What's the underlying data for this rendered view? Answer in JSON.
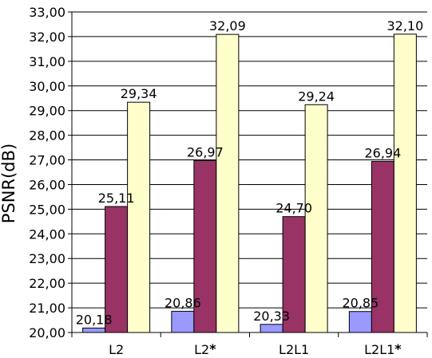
{
  "chart_data": {
    "type": "bar",
    "categories": [
      "L2",
      "L2*",
      "L2L1",
      "L2L1*"
    ],
    "series": [
      {
        "values": [
          20.18,
          20.86,
          20.33,
          20.85
        ],
        "color": "#9999ff"
      },
      {
        "values": [
          25.11,
          26.97,
          24.7,
          26.94
        ],
        "color": "#993366"
      },
      {
        "values": [
          29.34,
          32.09,
          29.24,
          32.1
        ],
        "color": "#ffffcc"
      }
    ],
    "data_labels": [
      [
        "20,18",
        "20,86",
        "20,33",
        "20,85"
      ],
      [
        "25,11",
        "26,97",
        "24,70",
        "26,94"
      ],
      [
        "29,34",
        "32,09",
        "29,24",
        "32,10"
      ]
    ],
    "x_tick_labels": [
      {
        "text": "L2",
        "star": ""
      },
      {
        "text": "L2",
        "star": "*"
      },
      {
        "text": "L2L1",
        "star": ""
      },
      {
        "text": "L2L1",
        "star": "*"
      }
    ],
    "y_ticks": [
      "20,00",
      "21,00",
      "22,00",
      "23,00",
      "24,00",
      "25,00",
      "26,00",
      "27,00",
      "28,00",
      "29,00",
      "30,00",
      "31,00",
      "32,00",
      "33,00"
    ],
    "ylabel": "PSNR(dB)",
    "xlabel": "",
    "title": "",
    "ylim": [
      20,
      33
    ],
    "grid": true,
    "legend": "none"
  }
}
